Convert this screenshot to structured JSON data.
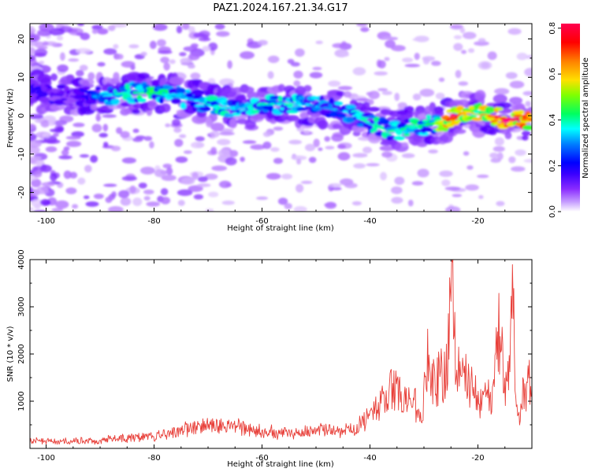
{
  "title": "PAZ1.2024.167.21.34.G17",
  "chart_data": [
    {
      "type": "heatmap",
      "xlabel": "Height of straight line (km)",
      "ylabel": "Frequency (Hz)",
      "xlim": [
        -103,
        -10
      ],
      "ylim": [
        -25,
        24
      ],
      "xticks": [
        -100,
        -80,
        -60,
        -40,
        -20
      ],
      "yticks": [
        20,
        10,
        0,
        -10,
        -20
      ],
      "colorbar": {
        "label": "Normalized spectral amplitude",
        "range": [
          0.0,
          0.82
        ],
        "ticks": [
          0.0,
          0.2,
          0.4,
          0.6,
          0.8
        ],
        "colormap": [
          "#ffffff",
          "#b070ff",
          "#6000ff",
          "#0000ff",
          "#00ffff",
          "#00ff40",
          "#c0ff00",
          "#ffe000",
          "#ff8000",
          "#ff0000",
          "#ff00a0"
        ]
      },
      "ridge": {
        "height_km": [
          -101,
          -95,
          -90,
          -85,
          -80,
          -76,
          -72,
          -68,
          -64,
          -60,
          -56,
          -52,
          -48,
          -44,
          -40,
          -36,
          -32,
          -28,
          -25,
          -22,
          -18,
          -14,
          -10
        ],
        "frequency_hz": [
          6,
          5,
          5,
          6,
          6,
          5,
          4,
          2,
          2,
          3,
          3,
          3,
          2,
          1,
          -2,
          -4,
          -3,
          -2,
          -1,
          1,
          0,
          -1,
          -1
        ],
        "amplitude": [
          0.2,
          0.15,
          0.3,
          0.35,
          0.4,
          0.3,
          0.3,
          0.35,
          0.3,
          0.35,
          0.35,
          0.3,
          0.3,
          0.3,
          0.35,
          0.35,
          0.35,
          0.4,
          0.75,
          0.55,
          0.65,
          0.8,
          0.6
        ]
      }
    },
    {
      "type": "line",
      "xlabel": "Height of straight line (km)",
      "ylabel": "SNR (10 * v/v)",
      "xlim": [
        -103,
        -10
      ],
      "ylim": [
        0,
        4000
      ],
      "xticks": [
        -100,
        -80,
        -60,
        -40,
        -20
      ],
      "yticks": [
        1000,
        2000,
        3000,
        4000
      ],
      "series": [
        {
          "color": "#e8403a",
          "x": [
            -103,
            -100,
            -95,
            -90,
            -85,
            -80,
            -78,
            -75,
            -72,
            -69,
            -66,
            -63,
            -60,
            -57,
            -54,
            -51,
            -48,
            -45,
            -43,
            -41,
            -39,
            -37,
            -35.5,
            -34,
            -32,
            -30.5,
            -29.5,
            -28,
            -27,
            -26,
            -25.3,
            -24.7,
            -24,
            -23,
            -22,
            -21,
            -20,
            -19,
            -18,
            -17,
            -16.2,
            -15.5,
            -15,
            -14.5,
            -14,
            -13.5,
            -13,
            -12.3,
            -11.7,
            -11,
            -10.5,
            -10
          ],
          "y": [
            150,
            150,
            160,
            180,
            220,
            260,
            300,
            380,
            450,
            520,
            480,
            420,
            380,
            320,
            330,
            350,
            380,
            380,
            420,
            600,
            800,
            1100,
            1300,
            1000,
            1100,
            500,
            1900,
            1300,
            1600,
            1500,
            2500,
            3950,
            1500,
            1700,
            1400,
            1300,
            1050,
            1000,
            1100,
            1250,
            2500,
            2200,
            1300,
            1600,
            2000,
            3300,
            1200,
            500,
            1100,
            1200,
            1500,
            1400
          ]
        }
      ]
    }
  ]
}
